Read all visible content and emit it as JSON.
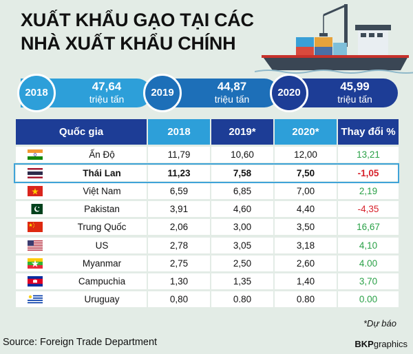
{
  "title_line1": "XUẤT KHẨU GẠO TẠI CÁC",
  "title_line2": "NHÀ XUẤT KHẨU CHÍNH",
  "banner": [
    {
      "year": "2018",
      "value": "47,64",
      "unit": "triệu tấn"
    },
    {
      "year": "2019",
      "value": "44,87",
      "unit": "triệu tấn"
    },
    {
      "year": "2020",
      "value": "45,99",
      "unit": "triệu tấn"
    }
  ],
  "headers": [
    "Quốc gia",
    "2018",
    "2019*",
    "2020*",
    "Thay đổi %"
  ],
  "chart_data": {
    "type": "table",
    "title": "XUẤT KHẨU GẠO TẠI CÁC NHÀ XUẤT KHẨU CHÍNH",
    "columns": [
      "Quốc gia",
      "2018",
      "2019*",
      "2020*",
      "Thay đổi %"
    ],
    "rows": [
      {
        "country": "Ấn Độ",
        "flag": "india-flag",
        "v2018": "11,79",
        "v2019": "10,60",
        "v2020": "12,00",
        "change": "13,21",
        "change_color": "#2aa147"
      },
      {
        "country": "Thái Lan",
        "flag": "thailand-flag",
        "v2018": "11,23",
        "v2019": "7,58",
        "v2020": "7,50",
        "change": "-1,05",
        "change_color": "#d7222b",
        "highlight": true
      },
      {
        "country": "Việt Nam",
        "flag": "vietnam-flag",
        "v2018": "6,59",
        "v2019": "6,85",
        "v2020": "7,00",
        "change": "2,19",
        "change_color": "#2aa147"
      },
      {
        "country": "Pakistan",
        "flag": "pakistan-flag",
        "v2018": "3,91",
        "v2019": "4,60",
        "v2020": "4,40",
        "change": "-4,35",
        "change_color": "#d7222b"
      },
      {
        "country": "Trung Quốc",
        "flag": "china-flag",
        "v2018": "2,06",
        "v2019": "3,00",
        "v2020": "3,50",
        "change": "16,67",
        "change_color": "#2aa147"
      },
      {
        "country": "US",
        "flag": "us-flag",
        "v2018": "2,78",
        "v2019": "3,05",
        "v2020": "3,18",
        "change": "4,10",
        "change_color": "#2aa147"
      },
      {
        "country": "Myanmar",
        "flag": "myanmar-flag",
        "v2018": "2,75",
        "v2019": "2,50",
        "v2020": "2,60",
        "change": "4.00",
        "change_color": "#2aa147"
      },
      {
        "country": "Campuchia",
        "flag": "cambodia-flag",
        "v2018": "1,30",
        "v2019": "1,35",
        "v2020": "1,40",
        "change": "3,70",
        "change_color": "#2aa147"
      },
      {
        "country": "Uruguay",
        "flag": "uruguay-flag",
        "v2018": "0,80",
        "v2019": "0.80",
        "v2020": "0.80",
        "change": "0.00",
        "change_color": "#2aa147"
      }
    ]
  },
  "note": "*Dự báo",
  "source": "Source: Foreign Trade Department",
  "brand_bold": "BKP",
  "brand_rest": "graphics",
  "colors": {
    "header_dark": "#1d3d96",
    "header_light": "#2d9fd9",
    "banner_light": "#2d9fd9",
    "banner_mid": "#1d6fb8",
    "banner_dark": "#1d3d96",
    "highlight_border": "#3fa3d8"
  }
}
